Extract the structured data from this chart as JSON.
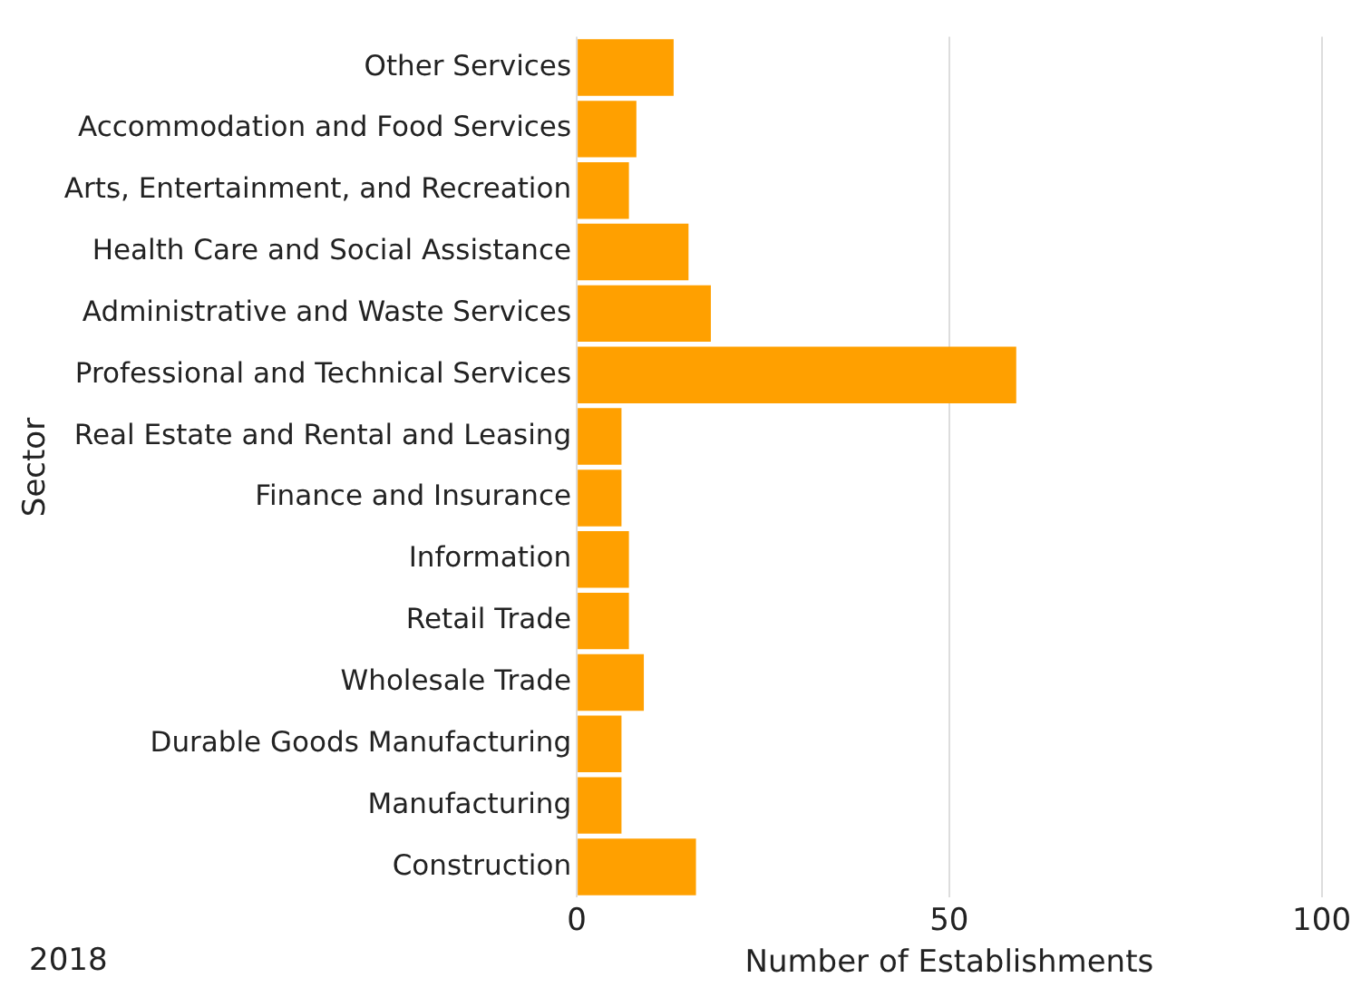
{
  "chart_data": {
    "type": "bar",
    "orientation": "horizontal",
    "ylabel": "Sector",
    "xlabel": "Number of Establishments",
    "annotations": [
      "2018"
    ],
    "categories": [
      "Other Services",
      "Accommodation and Food Services",
      "Arts, Entertainment, and Recreation",
      "Health Care and Social Assistance",
      "Administrative and Waste Services",
      "Professional and Technical Services",
      "Real Estate and Rental and Leasing",
      "Finance and Insurance",
      "Information",
      "Retail Trade",
      "Wholesale Trade",
      "Durable Goods Manufacturing",
      "Manufacturing",
      "Construction"
    ],
    "values": [
      13,
      8,
      7,
      15,
      18,
      59,
      6,
      6,
      7,
      7,
      9,
      6,
      6,
      16
    ],
    "color": "#ffa000",
    "xlim": [
      0,
      100
    ],
    "xticks": [
      0,
      50,
      100
    ],
    "grid": "x",
    "legend": false
  }
}
